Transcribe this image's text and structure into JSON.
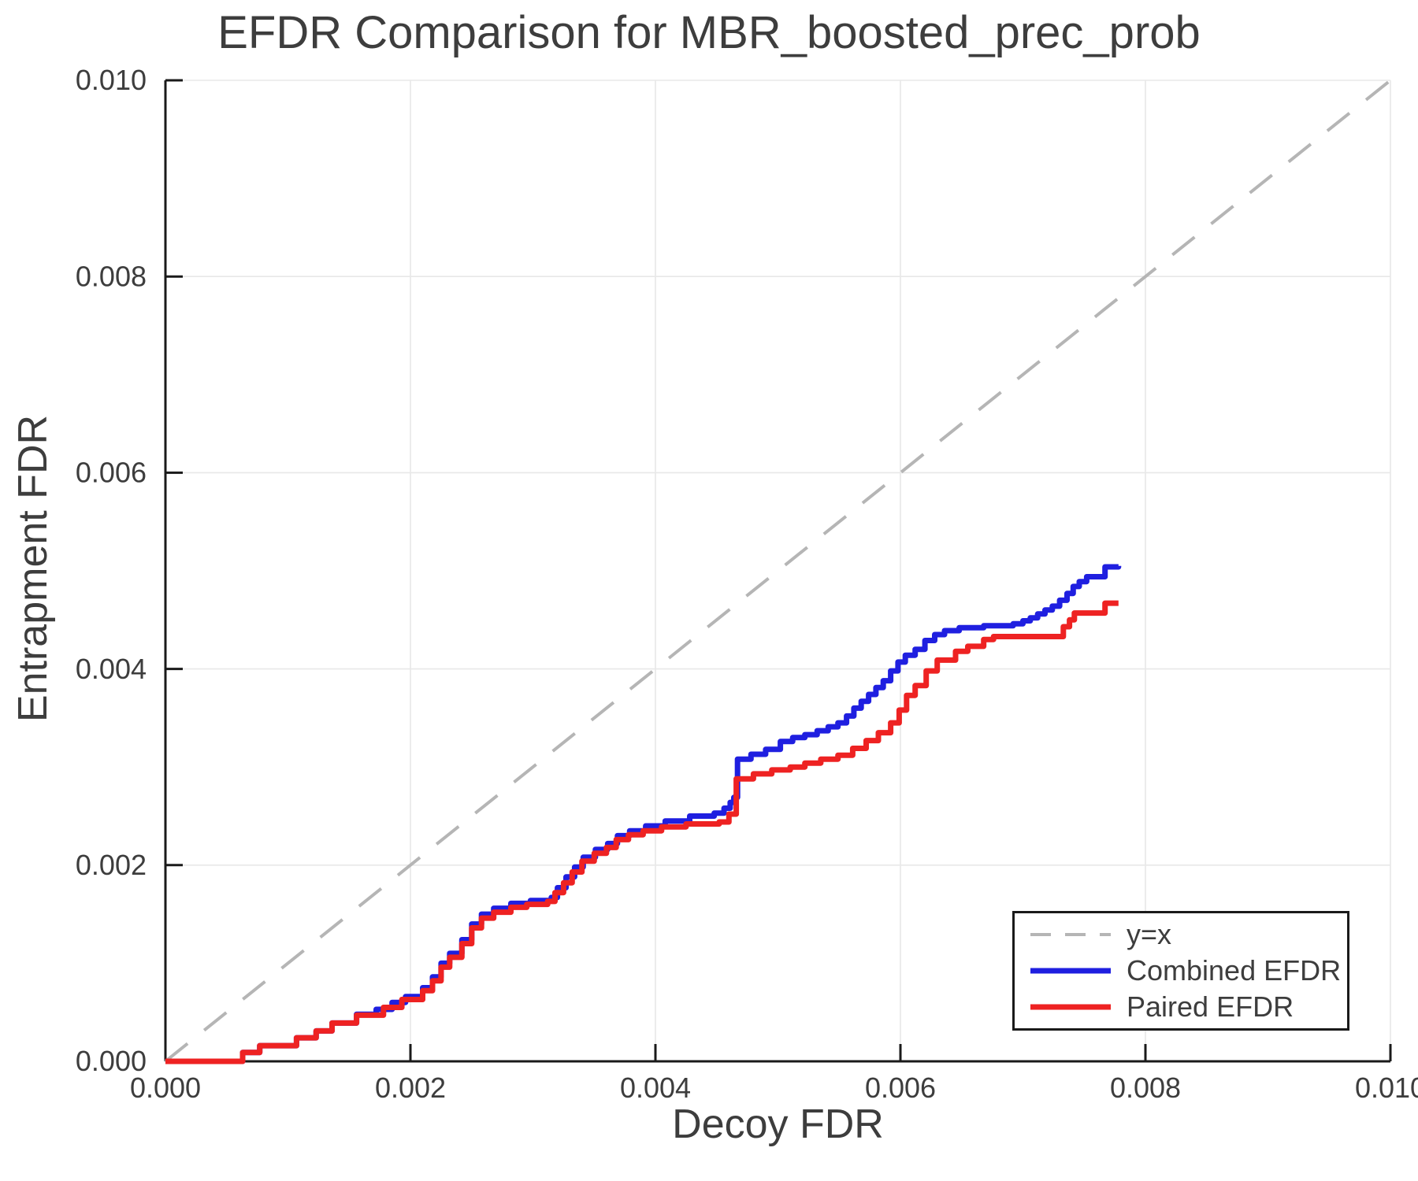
{
  "figure": {
    "background": "#ffffff",
    "text_color": "#3d3d3d",
    "axis_color": "#1a1a1a",
    "grid_color": "#e8e8e8"
  },
  "chart_data": {
    "type": "line",
    "title": "EFDR Comparison for MBR_boosted_prec_prob",
    "xlabel": "Decoy FDR",
    "ylabel": "Entrapment FDR",
    "xlim": [
      0.0,
      0.01
    ],
    "ylim": [
      0.0,
      0.01
    ],
    "grid": true,
    "xticks": {
      "values": [
        0.0,
        0.002,
        0.004,
        0.006,
        0.008,
        0.01
      ],
      "labels": [
        "0.000",
        "0.002",
        "0.004",
        "0.006",
        "0.008",
        "0.010"
      ]
    },
    "yticks": {
      "values": [
        0.0,
        0.002,
        0.004,
        0.006,
        0.008,
        0.01
      ],
      "labels": [
        "0.000",
        "0.002",
        "0.004",
        "0.006",
        "0.008",
        "0.010"
      ]
    },
    "legend": {
      "position": "lower-right",
      "border": true
    },
    "diagonal": {
      "label": "y=x",
      "color": "#b5b5b5",
      "dash": true,
      "from": [
        0.0,
        0.0
      ],
      "to": [
        0.01,
        0.01
      ]
    },
    "series": [
      {
        "name": "Combined EFDR",
        "color": "#1f1fe0",
        "step": true,
        "points": [
          [
            0.0,
            0.0
          ],
          [
            0.00063,
            9e-05
          ],
          [
            0.00077,
            0.00016
          ],
          [
            0.00107,
            0.00024
          ],
          [
            0.00123,
            0.00031
          ],
          [
            0.00136,
            0.00039
          ],
          [
            0.00156,
            0.00048
          ],
          [
            0.00172,
            0.00053
          ],
          [
            0.00185,
            0.0006
          ],
          [
            0.00196,
            0.00066
          ],
          [
            0.0021,
            0.00075
          ],
          [
            0.00218,
            0.00086
          ],
          [
            0.00225,
            0.001
          ],
          [
            0.00232,
            0.0011
          ],
          [
            0.00242,
            0.00124
          ],
          [
            0.0025,
            0.0014
          ],
          [
            0.00258,
            0.0015
          ],
          [
            0.00268,
            0.00156
          ],
          [
            0.00282,
            0.00161
          ],
          [
            0.00298,
            0.00164
          ],
          [
            0.00315,
            0.00167
          ],
          [
            0.0032,
            0.00177
          ],
          [
            0.00327,
            0.00188
          ],
          [
            0.00334,
            0.00198
          ],
          [
            0.00341,
            0.00208
          ],
          [
            0.00351,
            0.00216
          ],
          [
            0.00361,
            0.00222
          ],
          [
            0.00369,
            0.0023
          ],
          [
            0.00379,
            0.00235
          ],
          [
            0.00392,
            0.0024
          ],
          [
            0.00408,
            0.00245
          ],
          [
            0.00428,
            0.0025
          ],
          [
            0.00448,
            0.00253
          ],
          [
            0.00456,
            0.00258
          ],
          [
            0.00461,
            0.00264
          ],
          [
            0.00464,
            0.00269
          ],
          [
            0.00467,
            0.00308
          ],
          [
            0.00478,
            0.00313
          ],
          [
            0.0049,
            0.00318
          ],
          [
            0.00502,
            0.00326
          ],
          [
            0.00512,
            0.0033
          ],
          [
            0.00522,
            0.00333
          ],
          [
            0.00532,
            0.00337
          ],
          [
            0.00541,
            0.00341
          ],
          [
            0.00549,
            0.00345
          ],
          [
            0.00556,
            0.00352
          ],
          [
            0.00562,
            0.0036
          ],
          [
            0.00568,
            0.00367
          ],
          [
            0.00574,
            0.00374
          ],
          [
            0.0058,
            0.00381
          ],
          [
            0.00586,
            0.00388
          ],
          [
            0.00592,
            0.00398
          ],
          [
            0.00598,
            0.00407
          ],
          [
            0.00604,
            0.00414
          ],
          [
            0.00612,
            0.0042
          ],
          [
            0.0062,
            0.00429
          ],
          [
            0.00628,
            0.00435
          ],
          [
            0.00636,
            0.00439
          ],
          [
            0.00648,
            0.00442
          ],
          [
            0.00668,
            0.00444
          ],
          [
            0.00692,
            0.00446
          ],
          [
            0.007,
            0.00449
          ],
          [
            0.00706,
            0.00452
          ],
          [
            0.00712,
            0.00456
          ],
          [
            0.00718,
            0.0046
          ],
          [
            0.00724,
            0.00464
          ],
          [
            0.0073,
            0.0047
          ],
          [
            0.00736,
            0.00477
          ],
          [
            0.00741,
            0.00484
          ],
          [
            0.00746,
            0.00489
          ],
          [
            0.00752,
            0.00494
          ],
          [
            0.00767,
            0.00504
          ],
          [
            0.00778,
            0.00505
          ]
        ]
      },
      {
        "name": "Paired EFDR",
        "color": "#ee2222",
        "step": true,
        "points": [
          [
            0.0,
            0.0
          ],
          [
            0.00063,
            9e-05
          ],
          [
            0.00077,
            0.00016
          ],
          [
            0.00107,
            0.00024
          ],
          [
            0.00123,
            0.00031
          ],
          [
            0.00136,
            0.00039
          ],
          [
            0.00156,
            0.00047
          ],
          [
            0.00178,
            0.00055
          ],
          [
            0.00193,
            0.00063
          ],
          [
            0.0021,
            0.00072
          ],
          [
            0.00218,
            0.00082
          ],
          [
            0.00225,
            0.00096
          ],
          [
            0.00232,
            0.00106
          ],
          [
            0.00242,
            0.0012
          ],
          [
            0.0025,
            0.00136
          ],
          [
            0.00258,
            0.00146
          ],
          [
            0.00268,
            0.00152
          ],
          [
            0.00282,
            0.00157
          ],
          [
            0.00295,
            0.0016
          ],
          [
            0.00312,
            0.00163
          ],
          [
            0.00318,
            0.00172
          ],
          [
            0.00325,
            0.00182
          ],
          [
            0.00332,
            0.00193
          ],
          [
            0.0034,
            0.00204
          ],
          [
            0.0035,
            0.00212
          ],
          [
            0.0036,
            0.00218
          ],
          [
            0.00368,
            0.00226
          ],
          [
            0.00378,
            0.00231
          ],
          [
            0.0039,
            0.00235
          ],
          [
            0.00405,
            0.00239
          ],
          [
            0.00425,
            0.00242
          ],
          [
            0.00452,
            0.00244
          ],
          [
            0.0046,
            0.00252
          ],
          [
            0.00466,
            0.00288
          ],
          [
            0.0048,
            0.00293
          ],
          [
            0.00495,
            0.00297
          ],
          [
            0.0051,
            0.003
          ],
          [
            0.00522,
            0.00304
          ],
          [
            0.00535,
            0.00308
          ],
          [
            0.00549,
            0.00312
          ],
          [
            0.00561,
            0.00319
          ],
          [
            0.00572,
            0.00327
          ],
          [
            0.00582,
            0.00335
          ],
          [
            0.00592,
            0.00345
          ],
          [
            0.00599,
            0.00358
          ],
          [
            0.00605,
            0.00373
          ],
          [
            0.00612,
            0.00383
          ],
          [
            0.00621,
            0.00398
          ],
          [
            0.0063,
            0.00409
          ],
          [
            0.00645,
            0.00418
          ],
          [
            0.00655,
            0.00423
          ],
          [
            0.00668,
            0.0043
          ],
          [
            0.00676,
            0.00433
          ],
          [
            0.00733,
            0.00443
          ],
          [
            0.00738,
            0.0045
          ],
          [
            0.00742,
            0.00457
          ],
          [
            0.00767,
            0.00467
          ],
          [
            0.00778,
            0.00467
          ]
        ]
      }
    ]
  }
}
